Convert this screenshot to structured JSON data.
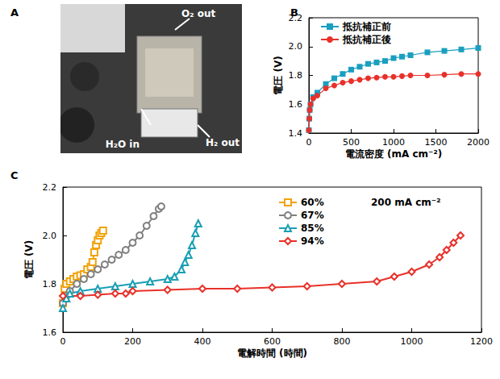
{
  "photo": {
    "panel": "A",
    "labels": [
      "O₂ out",
      "H₂O in",
      "H₂ out"
    ]
  },
  "chart_data": [
    {
      "type": "line",
      "panel": "B",
      "x_label": "電流密度 (mA cm⁻²)",
      "y_label": "電圧 (V)",
      "xlim": [
        0,
        2000
      ],
      "xticks": [
        0,
        500,
        1000,
        1500,
        2000
      ],
      "ylim": [
        1.4,
        2.2
      ],
      "yticks": [
        1.4,
        1.6,
        1.8,
        {
          "value": 2,
          "label": "2.0"
        },
        2.2
      ],
      "grid": false,
      "legend": "upper left",
      "series": [
        {
          "name": "抵抗補正前",
          "color": "#1a9fc0",
          "marker": "square",
          "x": [
            0,
            5,
            10,
            20,
            50,
            100,
            200,
            300,
            400,
            500,
            600,
            700,
            800,
            900,
            1000,
            1100,
            1200,
            1400,
            1600,
            1800,
            2000
          ],
          "values": [
            1.42,
            1.5,
            1.56,
            1.6,
            1.65,
            1.68,
            1.74,
            1.78,
            1.81,
            1.84,
            1.86,
            1.88,
            1.89,
            1.9,
            1.92,
            1.93,
            1.94,
            1.96,
            1.97,
            1.98,
            1.99
          ]
        },
        {
          "name": "抵抗補正後",
          "color": "#e8312a",
          "marker": "circle",
          "x": [
            0,
            5,
            10,
            20,
            50,
            100,
            200,
            300,
            400,
            500,
            600,
            700,
            800,
            900,
            1000,
            1100,
            1200,
            1400,
            1600,
            1800,
            2000
          ],
          "values": [
            1.42,
            1.5,
            1.56,
            1.6,
            1.64,
            1.66,
            1.71,
            1.73,
            1.75,
            1.76,
            1.77,
            1.78,
            1.785,
            1.79,
            1.79,
            1.795,
            1.8,
            1.8,
            1.805,
            1.81,
            1.81
          ]
        }
      ]
    },
    {
      "type": "line",
      "panel": "C",
      "annotation": "200 mA cm⁻²",
      "x_label": "電解時間 (時間)",
      "y_label": "電圧 (V)",
      "xlim": [
        0,
        1200
      ],
      "xticks": [
        0,
        200,
        400,
        600,
        800,
        1000,
        1200
      ],
      "ylim": [
        1.6,
        2.2
      ],
      "yticks": [
        1.6,
        1.8,
        {
          "value": 2,
          "label": "2.0"
        },
        2.2
      ],
      "grid": false,
      "legend": "upper right",
      "series": [
        {
          "name": "60%",
          "color": "#f0a30a",
          "marker": "open-square",
          "x": [
            0,
            5,
            10,
            20,
            30,
            40,
            50,
            60,
            70,
            80,
            85,
            90,
            95,
            100,
            105,
            110,
            115
          ],
          "values": [
            1.72,
            1.78,
            1.8,
            1.81,
            1.82,
            1.83,
            1.835,
            1.84,
            1.86,
            1.87,
            1.89,
            1.93,
            1.96,
            1.98,
            2.0,
            2.01,
            2.02
          ]
        },
        {
          "name": "67%",
          "color": "#808080",
          "marker": "open-circle",
          "x": [
            0,
            10,
            20,
            40,
            60,
            80,
            100,
            120,
            140,
            160,
            180,
            200,
            220,
            240,
            260,
            275,
            282
          ],
          "values": [
            1.72,
            1.75,
            1.77,
            1.8,
            1.82,
            1.84,
            1.86,
            1.88,
            1.9,
            1.92,
            1.94,
            1.97,
            2.0,
            2.04,
            2.08,
            2.11,
            2.12
          ]
        },
        {
          "name": "85%",
          "color": "#1a9fb5",
          "marker": "open-triangle",
          "x": [
            0,
            10,
            20,
            50,
            100,
            150,
            200,
            250,
            300,
            320,
            340,
            350,
            360,
            370,
            380,
            388
          ],
          "values": [
            1.7,
            1.74,
            1.76,
            1.77,
            1.78,
            1.79,
            1.8,
            1.81,
            1.82,
            1.83,
            1.86,
            1.89,
            1.92,
            1.96,
            2.01,
            2.05
          ]
        },
        {
          "name": "94%",
          "color": "#e8312a",
          "marker": "open-diamond",
          "x": [
            0,
            50,
            100,
            150,
            180,
            200,
            300,
            400,
            500,
            600,
            700,
            800,
            900,
            950,
            1000,
            1050,
            1080,
            1100,
            1120,
            1140
          ],
          "values": [
            1.75,
            1.75,
            1.755,
            1.76,
            1.76,
            1.77,
            1.775,
            1.78,
            1.78,
            1.785,
            1.79,
            1.8,
            1.81,
            1.83,
            1.85,
            1.88,
            1.91,
            1.94,
            1.97,
            2.0
          ]
        }
      ]
    }
  ]
}
